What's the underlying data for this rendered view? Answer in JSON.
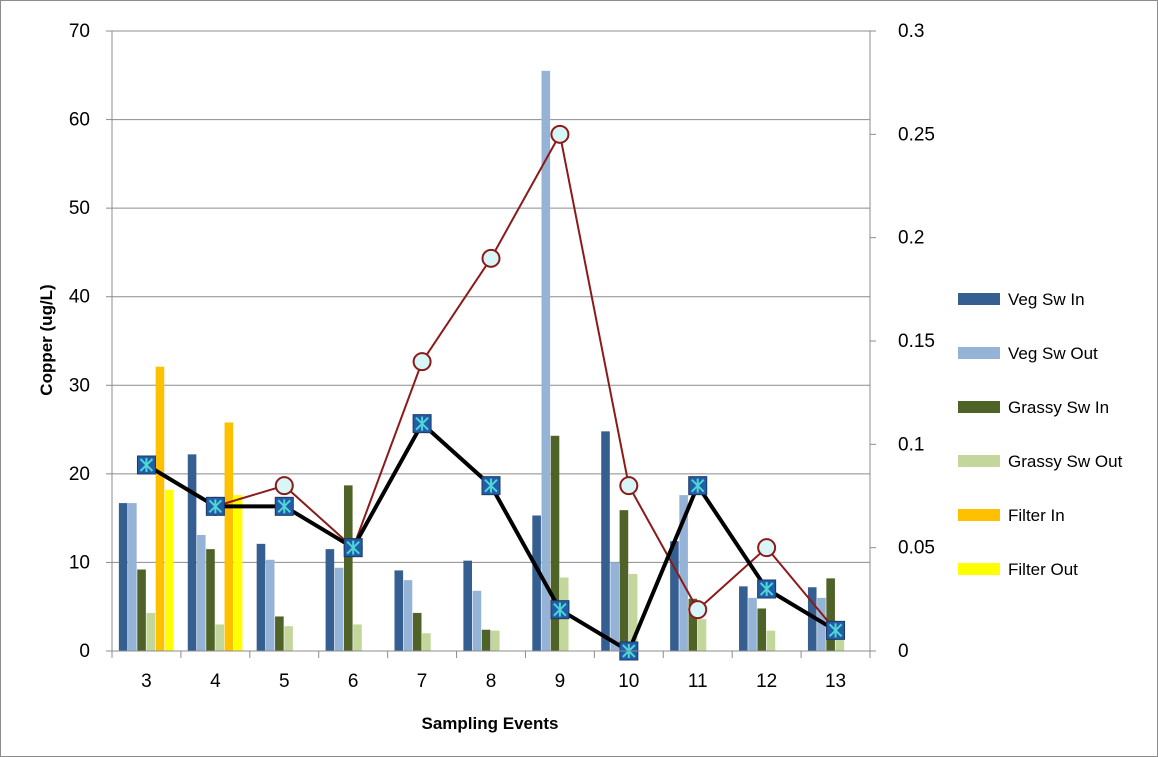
{
  "chart_data": {
    "type": "bar",
    "title": "",
    "xlabel": "Sampling Events",
    "ylabel": "Copper (ug/L)",
    "categories": [
      "3",
      "4",
      "5",
      "6",
      "7",
      "8",
      "9",
      "10",
      "11",
      "12",
      "13"
    ],
    "ylim": [
      0,
      70
    ],
    "y_ticks": [
      "0",
      "10",
      "20",
      "30",
      "40",
      "50",
      "60",
      "70"
    ],
    "y2lim": [
      0,
      0.3
    ],
    "y2_ticks": [
      "0",
      "0.05",
      "0.1",
      "0.15",
      "0.2",
      "0.25",
      "0.3"
    ],
    "grid": true,
    "legend_position": "right",
    "series": [
      {
        "name": "Veg Sw In",
        "type": "bar",
        "axis": "left",
        "color": "#365f91",
        "values": [
          16.7,
          22.2,
          12.1,
          11.5,
          9.1,
          10.2,
          15.3,
          24.8,
          12.4,
          7.3,
          7.2
        ]
      },
      {
        "name": "Veg Sw Out",
        "type": "bar",
        "axis": "left",
        "color": "#95b3d7",
        "values": [
          16.7,
          13.1,
          10.3,
          9.4,
          8.0,
          6.8,
          65.5,
          10.0,
          17.6,
          6.0,
          6.0
        ]
      },
      {
        "name": "Grassy Sw In",
        "type": "bar",
        "axis": "left",
        "color": "#4f6228",
        "values": [
          9.2,
          11.5,
          3.9,
          18.7,
          4.3,
          2.4,
          24.3,
          15.9,
          5.9,
          4.8,
          8.2
        ]
      },
      {
        "name": "Grassy Sw Out",
        "type": "bar",
        "axis": "left",
        "color": "#c3d69b",
        "values": [
          4.3,
          3.0,
          2.8,
          3.0,
          2.0,
          2.3,
          8.3,
          8.7,
          3.6,
          2.3,
          2.3
        ]
      },
      {
        "name": "Filter In",
        "type": "bar",
        "axis": "left",
        "color": "#ffc000",
        "values": [
          32.1,
          25.8,
          null,
          null,
          null,
          null,
          null,
          null,
          null,
          null,
          null
        ]
      },
      {
        "name": "Filter Out",
        "type": "bar",
        "axis": "left",
        "color": "#ffff00",
        "values": [
          18.2,
          17.6,
          null,
          null,
          null,
          null,
          null,
          null,
          null,
          null,
          null
        ]
      },
      {
        "type": "line",
        "axis": "right",
        "color": "#000000",
        "marker": "square-x",
        "marker_color": "#215ea8",
        "values": [
          0.09,
          0.07,
          0.07,
          0.05,
          0.11,
          0.08,
          0.02,
          0.0,
          0.08,
          0.03,
          0.01
        ]
      },
      {
        "type": "line",
        "axis": "right",
        "color": "#8b1a1a",
        "marker": "circle",
        "marker_color": "#d9f6f6",
        "values": [
          0.09,
          0.07,
          0.08,
          0.05,
          0.14,
          0.19,
          0.25,
          0.08,
          0.02,
          0.05,
          0.01
        ]
      }
    ]
  }
}
